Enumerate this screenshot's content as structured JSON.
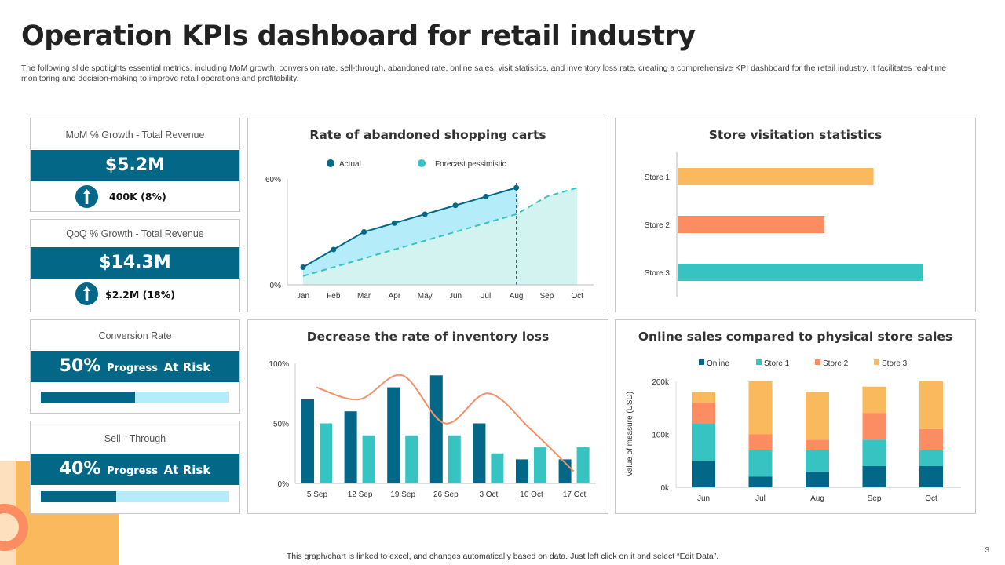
{
  "header": {
    "title": "Operation KPIs dashboard for retail industry",
    "subtitle": "The following slide spotlights essential metrics, including MoM growth, conversion rate, sell-through, abandoned rate, online sales, visit statistics, and inventory loss rate, creating a comprehensive KPI dashboard for the retail industry. It facilitates real-time monitoring and decision-making to improve retail operations and profitability."
  },
  "kpis": [
    {
      "label": "MoM % Growth - Total Revenue",
      "value": "$5.2M",
      "change": "400K (8%)",
      "icon": "arrow-up-icon"
    },
    {
      "label": "QoQ % Growth - Total Revenue",
      "value": "$14.3M",
      "change": "$2.2M (18%)",
      "icon": "arrow-up-icon"
    },
    {
      "label": "Conversion  Rate",
      "value": "50%",
      "status_prefix": "Progress",
      "status": "At Risk",
      "progress": 50
    },
    {
      "label": "Sell -  Through",
      "value": "40%",
      "status_prefix": "Progress",
      "status": "At Risk",
      "progress": 40
    }
  ],
  "colors": {
    "dark_teal": "#036887",
    "teal": "#36c3c1",
    "light_blue": "#b4ecfa",
    "coral": "#fc8c62",
    "orange": "#f9b95c",
    "line": "#f2906a"
  },
  "chart_data": [
    {
      "type": "line",
      "title": "Rate of abandoned shopping carts",
      "categories": [
        "Jan",
        "Feb",
        "Mar",
        "Apr",
        "May",
        "Jun",
        "Jul",
        "Aug",
        "Sep",
        "Oct"
      ],
      "ylim": [
        0,
        60
      ],
      "yticks": [
        "0%",
        "60%"
      ],
      "series": [
        {
          "name": "Actual",
          "values": [
            10,
            20,
            30,
            35,
            40,
            45,
            50,
            55,
            null,
            null
          ],
          "color": "#036887"
        },
        {
          "name": "Forecast pessimistic",
          "values": [
            5,
            10,
            15,
            20,
            25,
            30,
            35,
            40,
            50,
            55
          ],
          "color": "#36c3c1"
        }
      ]
    },
    {
      "type": "bar",
      "title": "Store visitation statistics",
      "categories": [
        "Store 1",
        "Store 2",
        "Store 3"
      ],
      "values": [
        80,
        60,
        100
      ],
      "colors": [
        "#f9b95c",
        "#fc8c62",
        "#36c3c1"
      ]
    },
    {
      "type": "bar",
      "title": "Decrease the rate of inventory loss",
      "categories": [
        "5 Sep",
        "12 Sep",
        "19 Sep",
        "26 Sep",
        "3 Oct",
        "10 Oct",
        "17 Oct"
      ],
      "ylim": [
        0,
        100
      ],
      "yticks": [
        "0%",
        "50%",
        "100%"
      ],
      "series": [
        {
          "values": [
            70,
            60,
            80,
            90,
            50,
            20,
            20
          ],
          "color": "#036887"
        },
        {
          "values": [
            50,
            40,
            40,
            40,
            25,
            30,
            30
          ],
          "color": "#36c3c1"
        },
        {
          "type": "line",
          "values": [
            80,
            70,
            90,
            50,
            75,
            45,
            10
          ],
          "color": "#f2906a"
        }
      ]
    },
    {
      "type": "bar",
      "stacked": true,
      "title": "Online sales compared to physical store sales",
      "ylabel": "Value of measure (USD)",
      "categories": [
        "Jun",
        "Jul",
        "Aug",
        "Sep",
        "Oct"
      ],
      "ylim": [
        0,
        200000
      ],
      "yticks": [
        "0k",
        "100k",
        "200k"
      ],
      "series": [
        {
          "name": "Online",
          "values": [
            50000,
            20000,
            30000,
            40000,
            40000
          ],
          "color": "#036887"
        },
        {
          "name": "Store 1",
          "values": [
            70000,
            50000,
            40000,
            50000,
            30000
          ],
          "color": "#36c3c1"
        },
        {
          "name": "Store 2",
          "values": [
            40000,
            30000,
            20000,
            50000,
            40000
          ],
          "color": "#fc8c62"
        },
        {
          "name": "Store 3",
          "values": [
            20000,
            100000,
            90000,
            50000,
            90000
          ],
          "color": "#f9b95c"
        }
      ]
    }
  ],
  "footer": {
    "note": "This graph/chart is linked to excel,  and changes automatically based on data. Just left click on it and select “Edit Data”.",
    "page": "3"
  }
}
